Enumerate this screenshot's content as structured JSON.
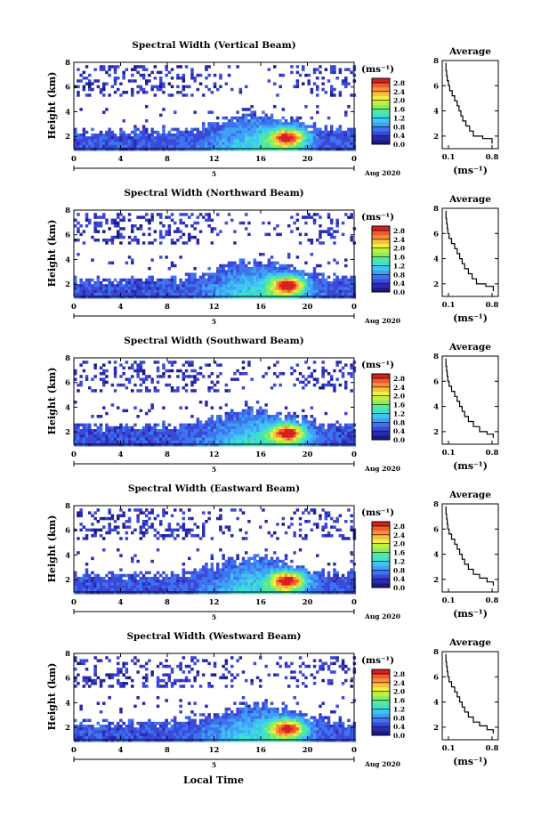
{
  "colors": {
    "colormap": [
      "#1a1a80",
      "#2a2ab0",
      "#3b48d8",
      "#3d74ee",
      "#3fa0f6",
      "#3fc6f0",
      "#40e0d0",
      "#52e8a0",
      "#86f060",
      "#bff040",
      "#f0f040",
      "#f8c040",
      "#f89038",
      "#f05a30",
      "#d82020"
    ],
    "background": "#ffffff",
    "axis": "#000000"
  },
  "common": {
    "xlabel": "Local Time",
    "ylabel": "Height (km)",
    "date_label": "Aug 2020",
    "day_label": "5",
    "unit_label": "(ms⁻¹)",
    "profile_title": "Average",
    "profile_xlabel": "(ms⁻¹)"
  },
  "chart_data": [
    {
      "type": "heatmap",
      "title": "Spectral Width (Vertical Beam)",
      "x_ticks": [
        "0",
        "4",
        "8",
        "12",
        "16",
        "20",
        "0"
      ],
      "xlim": [
        0,
        24
      ],
      "y_ticks": [
        "2",
        "4",
        "6",
        "8"
      ],
      "ylim": [
        1,
        8
      ],
      "colorbar_ticks": [
        "0.0",
        "0.4",
        "0.8",
        "1.2",
        "1.6",
        "2.0",
        "2.4",
        "2.8"
      ],
      "colorbar_range": [
        0,
        3.0
      ],
      "profile": {
        "title": "Average",
        "x_ticks": [
          "0.1",
          "0.8"
        ],
        "y_ticks": [
          "2",
          "4",
          "6",
          "8"
        ],
        "xlim": [
          0,
          0.9
        ],
        "ylim": [
          1,
          8
        ],
        "points": [
          [
            0.8,
            1.4
          ],
          [
            0.65,
            1.8
          ],
          [
            0.5,
            2.0
          ],
          [
            0.44,
            2.4
          ],
          [
            0.38,
            2.8
          ],
          [
            0.33,
            3.2
          ],
          [
            0.3,
            3.6
          ],
          [
            0.27,
            4.0
          ],
          [
            0.24,
            4.4
          ],
          [
            0.2,
            4.8
          ],
          [
            0.16,
            5.2
          ],
          [
            0.12,
            5.6
          ],
          [
            0.1,
            6.0
          ],
          [
            0.08,
            6.4
          ],
          [
            0.07,
            6.8
          ],
          [
            0.06,
            7.2
          ],
          [
            0.06,
            7.8
          ]
        ]
      }
    },
    {
      "type": "heatmap",
      "title": "Spectral Width (Northward Beam)",
      "x_ticks": [
        "0",
        "4",
        "8",
        "12",
        "16",
        "20",
        "0"
      ],
      "xlim": [
        0,
        24
      ],
      "y_ticks": [
        "2",
        "4",
        "6",
        "8"
      ],
      "ylim": [
        1,
        8
      ],
      "colorbar_ticks": [
        "0.0",
        "0.4",
        "0.8",
        "1.2",
        "1.6",
        "2.0",
        "2.4",
        "2.8"
      ],
      "colorbar_range": [
        0,
        3.0
      ],
      "profile": {
        "title": "Average",
        "x_ticks": [
          "0.1",
          "0.8"
        ],
        "y_ticks": [
          "2",
          "4",
          "6",
          "8"
        ],
        "xlim": [
          0,
          0.9
        ],
        "ylim": [
          1,
          8
        ],
        "points": [
          [
            0.82,
            1.4
          ],
          [
            0.7,
            1.8
          ],
          [
            0.55,
            2.0
          ],
          [
            0.48,
            2.4
          ],
          [
            0.42,
            2.8
          ],
          [
            0.36,
            3.2
          ],
          [
            0.32,
            3.6
          ],
          [
            0.28,
            4.0
          ],
          [
            0.24,
            4.4
          ],
          [
            0.2,
            4.8
          ],
          [
            0.15,
            5.2
          ],
          [
            0.11,
            5.6
          ],
          [
            0.09,
            6.0
          ],
          [
            0.08,
            6.4
          ],
          [
            0.07,
            6.8
          ],
          [
            0.06,
            7.2
          ],
          [
            0.06,
            7.8
          ]
        ]
      }
    },
    {
      "type": "heatmap",
      "title": "Spectral Width (Southward Beam)",
      "x_ticks": [
        "0",
        "4",
        "8",
        "12",
        "16",
        "20",
        "0"
      ],
      "xlim": [
        0,
        24
      ],
      "y_ticks": [
        "2",
        "4",
        "6",
        "8"
      ],
      "ylim": [
        1,
        8
      ],
      "colorbar_ticks": [
        "0.0",
        "0.4",
        "0.8",
        "1.2",
        "1.6",
        "2.0",
        "2.4",
        "2.8"
      ],
      "colorbar_range": [
        0,
        3.0
      ],
      "profile": {
        "title": "Average",
        "x_ticks": [
          "0.1",
          "0.8"
        ],
        "y_ticks": [
          "2",
          "4",
          "6",
          "8"
        ],
        "xlim": [
          0,
          0.9
        ],
        "ylim": [
          1,
          8
        ],
        "points": [
          [
            0.82,
            1.5
          ],
          [
            0.72,
            1.8
          ],
          [
            0.6,
            2.0
          ],
          [
            0.5,
            2.4
          ],
          [
            0.42,
            2.8
          ],
          [
            0.36,
            3.2
          ],
          [
            0.32,
            3.6
          ],
          [
            0.28,
            4.0
          ],
          [
            0.24,
            4.4
          ],
          [
            0.2,
            4.8
          ],
          [
            0.15,
            5.2
          ],
          [
            0.11,
            5.6
          ],
          [
            0.09,
            6.0
          ],
          [
            0.08,
            6.4
          ],
          [
            0.07,
            6.8
          ],
          [
            0.06,
            7.2
          ],
          [
            0.06,
            7.8
          ]
        ]
      }
    },
    {
      "type": "heatmap",
      "title": "Spectral Width (Eastward Beam)",
      "x_ticks": [
        "0",
        "4",
        "8",
        "12",
        "16",
        "20",
        "0"
      ],
      "xlim": [
        0,
        24
      ],
      "y_ticks": [
        "2",
        "4",
        "6",
        "8"
      ],
      "ylim": [
        1,
        8
      ],
      "colorbar_ticks": [
        "0.0",
        "0.4",
        "0.8",
        "1.2",
        "1.6",
        "2.0",
        "2.4",
        "2.8"
      ],
      "colorbar_range": [
        0,
        3.0
      ],
      "profile": {
        "title": "Average",
        "x_ticks": [
          "0.1",
          "0.8"
        ],
        "y_ticks": [
          "2",
          "4",
          "6",
          "8"
        ],
        "xlim": [
          0,
          0.9
        ],
        "ylim": [
          1,
          8
        ],
        "points": [
          [
            0.82,
            1.5
          ],
          [
            0.72,
            1.8
          ],
          [
            0.6,
            2.1
          ],
          [
            0.5,
            2.4
          ],
          [
            0.42,
            2.8
          ],
          [
            0.36,
            3.2
          ],
          [
            0.32,
            3.6
          ],
          [
            0.28,
            4.0
          ],
          [
            0.24,
            4.4
          ],
          [
            0.2,
            4.8
          ],
          [
            0.15,
            5.2
          ],
          [
            0.11,
            5.6
          ],
          [
            0.09,
            6.0
          ],
          [
            0.08,
            6.4
          ],
          [
            0.07,
            6.8
          ],
          [
            0.06,
            7.2
          ],
          [
            0.06,
            7.8
          ]
        ]
      }
    },
    {
      "type": "heatmap",
      "title": "Spectral Width (Westward Beam)",
      "x_ticks": [
        "0",
        "4",
        "8",
        "12",
        "16",
        "20",
        "0"
      ],
      "xlim": [
        0,
        24
      ],
      "y_ticks": [
        "2",
        "4",
        "6",
        "8"
      ],
      "ylim": [
        1,
        8
      ],
      "colorbar_ticks": [
        "0.0",
        "0.4",
        "0.8",
        "1.2",
        "1.6",
        "2.0",
        "2.4",
        "2.8"
      ],
      "colorbar_range": [
        0,
        3.0
      ],
      "profile": {
        "title": "Average",
        "x_ticks": [
          "0.1",
          "0.8"
        ],
        "y_ticks": [
          "2",
          "4",
          "6",
          "8"
        ],
        "xlim": [
          0,
          0.9
        ],
        "ylim": [
          1,
          8
        ],
        "points": [
          [
            0.82,
            1.5
          ],
          [
            0.72,
            1.8
          ],
          [
            0.6,
            2.1
          ],
          [
            0.5,
            2.4
          ],
          [
            0.42,
            2.8
          ],
          [
            0.36,
            3.2
          ],
          [
            0.32,
            3.6
          ],
          [
            0.28,
            4.0
          ],
          [
            0.24,
            4.4
          ],
          [
            0.2,
            4.8
          ],
          [
            0.15,
            5.2
          ],
          [
            0.11,
            5.6
          ],
          [
            0.09,
            6.0
          ],
          [
            0.08,
            6.4
          ],
          [
            0.07,
            6.8
          ],
          [
            0.06,
            7.2
          ],
          [
            0.06,
            7.8
          ]
        ]
      }
    }
  ]
}
